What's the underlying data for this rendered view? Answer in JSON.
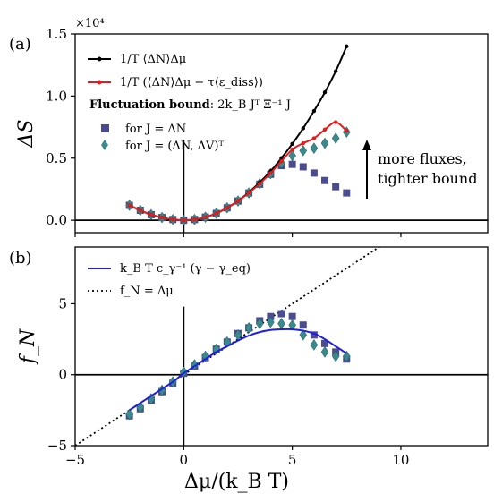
{
  "chart_data": [
    {
      "panel": "(a)",
      "type": "line",
      "ylabel": "ΔS",
      "exponent_label": "×10⁴",
      "xlim": [
        -5,
        14
      ],
      "ylim": [
        -0.1,
        1.5
      ],
      "yticks": [
        "0.0",
        "0.5",
        "1.0",
        "1.5"
      ],
      "legend_position": "top-left",
      "annotation": [
        "more fluxes,",
        "tighter bound"
      ],
      "legend": {
        "black_line": "1/T ⟨ΔN⟩Δμ",
        "red_line": "1/T (⟨ΔN⟩Δμ − τ⟨ε_diss⟩)",
        "heading_bold": "Fluctuation bound",
        "heading_rest": ": 2k_B Jᵀ Ξ⁻¹ J",
        "squares": "for J = ΔN",
        "diamonds": "for J = (ΔN, ΔV)ᵀ"
      },
      "series": [
        {
          "name": "1/T ⟨ΔN⟩Δμ",
          "color": "#000000",
          "style": "line-dots",
          "x": [
            -2.5,
            -2.0,
            -1.5,
            -1.0,
            -0.5,
            0.0,
            0.5,
            1.0,
            1.5,
            2.0,
            2.5,
            3.0,
            3.5,
            4.0,
            4.5,
            5.0,
            5.5,
            6.0,
            6.5,
            7.0,
            7.5
          ],
          "y": [
            0.12,
            0.08,
            0.045,
            0.022,
            0.006,
            0.0,
            0.006,
            0.025,
            0.055,
            0.1,
            0.155,
            0.225,
            0.305,
            0.395,
            0.5,
            0.615,
            0.74,
            0.88,
            1.03,
            1.2,
            1.4
          ]
        },
        {
          "name": "1/T (⟨ΔN⟩Δμ − τ⟨ε_diss⟩)",
          "color": "#e41a1c",
          "style": "line-dots",
          "x": [
            -2.5,
            -2.0,
            -1.5,
            -1.0,
            -0.5,
            0.0,
            0.5,
            1.0,
            1.5,
            2.0,
            2.5,
            3.0,
            3.5,
            4.0,
            4.5,
            5.0,
            5.5,
            6.0,
            6.5,
            7.0,
            7.5
          ],
          "y": [
            0.12,
            0.08,
            0.045,
            0.022,
            0.006,
            0.0,
            0.006,
            0.025,
            0.055,
            0.1,
            0.155,
            0.22,
            0.295,
            0.38,
            0.475,
            0.57,
            0.62,
            0.66,
            0.73,
            0.79,
            0.72
          ]
        },
        {
          "name": "for J = ΔN",
          "color": "#4b4b8f",
          "style": "square-markers",
          "x": [
            -2.5,
            -2.0,
            -1.5,
            -1.0,
            -0.5,
            0.0,
            0.5,
            1.0,
            1.5,
            2.0,
            2.5,
            3.0,
            3.5,
            4.0,
            4.5,
            5.0,
            5.5,
            6.0,
            6.5,
            7.0,
            7.5
          ],
          "y": [
            0.12,
            0.08,
            0.045,
            0.022,
            0.006,
            0.0,
            0.006,
            0.025,
            0.055,
            0.1,
            0.155,
            0.22,
            0.29,
            0.37,
            0.44,
            0.45,
            0.43,
            0.38,
            0.32,
            0.27,
            0.22
          ]
        },
        {
          "name": "for J = (ΔN, ΔV)ᵀ",
          "color": "#3a8a8c",
          "style": "diamond-markers",
          "x": [
            -2.5,
            -2.0,
            -1.5,
            -1.0,
            -0.5,
            0.0,
            0.5,
            1.0,
            1.5,
            2.0,
            2.5,
            3.0,
            3.5,
            4.0,
            4.5,
            5.0,
            5.5,
            6.0,
            6.5,
            7.0,
            7.5
          ],
          "y": [
            0.12,
            0.08,
            0.045,
            0.022,
            0.006,
            0.0,
            0.006,
            0.025,
            0.055,
            0.1,
            0.155,
            0.22,
            0.295,
            0.375,
            0.46,
            0.52,
            0.56,
            0.58,
            0.62,
            0.66,
            0.71
          ]
        }
      ]
    },
    {
      "panel": "(b)",
      "type": "line",
      "ylabel": "f_N",
      "xlabel": "Δμ/(k_B T)",
      "xlim": [
        -5,
        14
      ],
      "ylim": [
        -5,
        9
      ],
      "xticks": [
        "−5",
        "0",
        "5",
        "10"
      ],
      "yticks": [
        "−5",
        "0",
        "5"
      ],
      "legend_position": "top-left",
      "legend": {
        "blue_line": "k_B T c_γ⁻¹ (γ − γ_eq)",
        "dotted_line": "f_N = Δμ"
      },
      "series": [
        {
          "name": "k_B T c_γ⁻¹ (γ − γ_eq)",
          "color": "#1f1fe0",
          "style": "line",
          "x": [
            -2.5,
            -2.0,
            -1.5,
            -1.0,
            -0.5,
            0.0,
            0.5,
            1.0,
            1.5,
            2.0,
            2.5,
            3.0,
            3.5,
            4.0,
            4.5,
            5.0,
            5.5,
            6.0,
            6.5,
            7.0,
            7.5
          ],
          "y": [
            -2.5,
            -2.0,
            -1.5,
            -1.0,
            -0.5,
            0.1,
            0.6,
            1.1,
            1.6,
            2.0,
            2.4,
            2.75,
            3.0,
            3.15,
            3.2,
            3.2,
            3.1,
            2.9,
            2.5,
            2.0,
            1.5
          ]
        },
        {
          "name": "f_N = Δμ",
          "color": "#000000",
          "style": "dotted",
          "x": [
            -5,
            14
          ],
          "y": [
            -5,
            14
          ]
        },
        {
          "name": "for J = ΔN",
          "color": "#4b4b8f",
          "style": "square-markers",
          "x": [
            -2.5,
            -2.0,
            -1.5,
            -1.0,
            -0.5,
            0.0,
            0.5,
            1.0,
            1.5,
            2.0,
            2.5,
            3.0,
            3.5,
            4.0,
            4.5,
            5.0,
            5.5,
            6.0,
            6.5,
            7.0,
            7.5
          ],
          "y": [
            -2.9,
            -2.4,
            -1.8,
            -1.2,
            -0.6,
            0.1,
            0.6,
            1.2,
            1.8,
            2.3,
            2.9,
            3.3,
            3.8,
            4.1,
            4.3,
            4.1,
            3.5,
            2.8,
            2.2,
            1.6,
            1.1
          ]
        },
        {
          "name": "for J = (ΔN, ΔV)ᵀ",
          "color": "#3a8a8c",
          "style": "diamond-markers",
          "x": [
            -2.5,
            -2.0,
            -1.5,
            -1.0,
            -0.5,
            0.0,
            0.5,
            1.0,
            1.5,
            2.0,
            2.5,
            3.0,
            3.5,
            4.0,
            4.5,
            5.0,
            5.5,
            6.0,
            6.5,
            7.0,
            7.5
          ],
          "y": [
            -2.8,
            -2.3,
            -1.7,
            -1.1,
            -0.5,
            0.2,
            0.7,
            1.3,
            1.8,
            2.3,
            2.8,
            3.3,
            3.6,
            3.7,
            3.6,
            3.5,
            2.8,
            2.1,
            1.6,
            1.3,
            1.3
          ]
        }
      ]
    }
  ]
}
